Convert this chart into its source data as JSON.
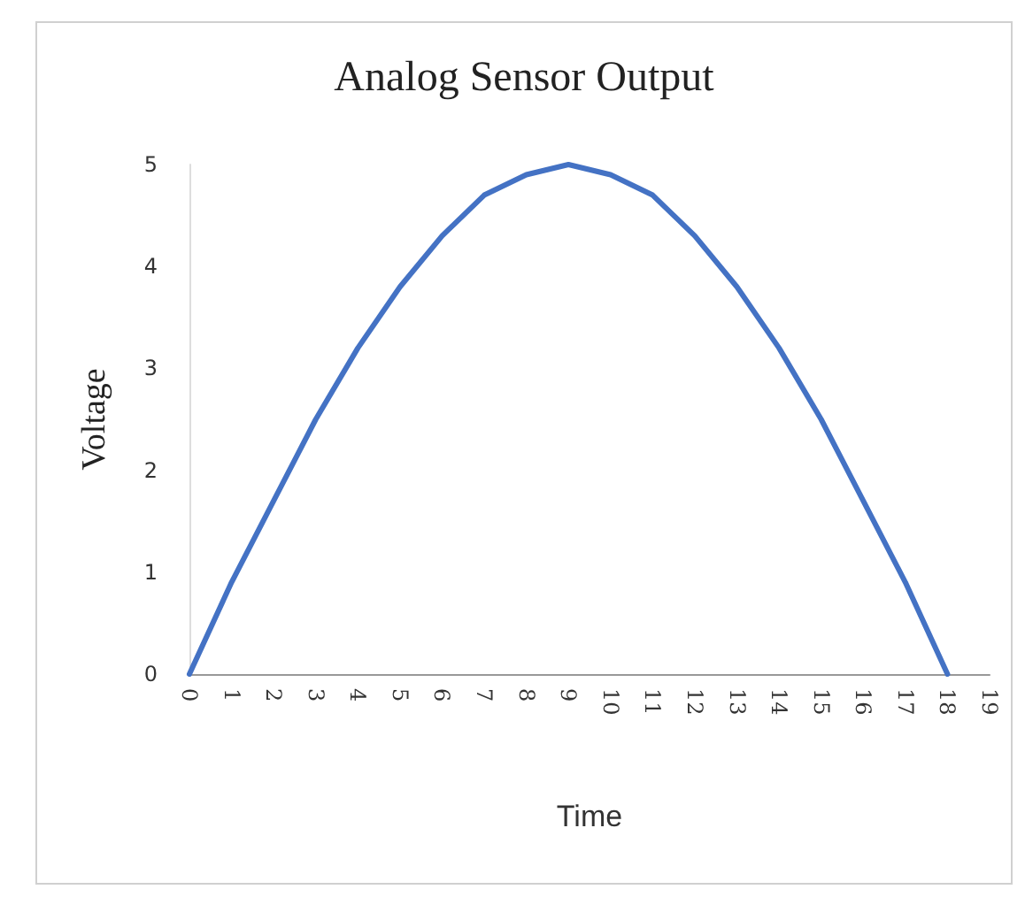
{
  "chart_data": {
    "type": "line",
    "title": "Analog Sensor Output",
    "xlabel": "Time",
    "ylabel": "Voltage",
    "x": [
      0,
      1,
      2,
      3,
      4,
      5,
      6,
      7,
      8,
      9,
      10,
      11,
      12,
      13,
      14,
      15,
      16,
      17,
      18
    ],
    "series": [
      {
        "color": "#4472c4",
        "values": [
          0,
          0.9,
          1.7,
          2.5,
          3.2,
          3.8,
          4.3,
          4.7,
          4.9,
          5,
          4.9,
          4.7,
          4.3,
          3.8,
          3.2,
          2.5,
          1.7,
          0.9,
          0
        ]
      }
    ],
    "xlim": [
      0,
      19
    ],
    "xticks": [
      0,
      1,
      2,
      3,
      4,
      5,
      6,
      7,
      8,
      9,
      10,
      11,
      12,
      13,
      14,
      15,
      16,
      17,
      18,
      19
    ],
    "ylim": [
      0,
      5
    ],
    "yticks": [
      0,
      1,
      2,
      3,
      4,
      5
    ],
    "grid": false,
    "marker": "none",
    "line_style": "solid"
  }
}
